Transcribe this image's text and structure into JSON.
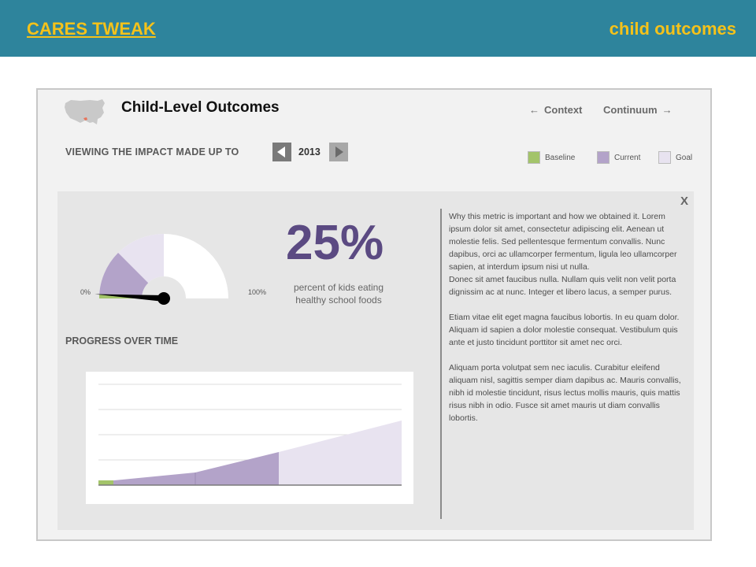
{
  "header": {
    "brand": "CARES TWEAK",
    "section": "child outcomes"
  },
  "page": {
    "title": "Child-Level Outcomes",
    "nav_context": "Context",
    "nav_continuum": "Continuum"
  },
  "viewing": {
    "label": "VIEWING THE IMPACT MADE UP TO",
    "year": "2013"
  },
  "legend": {
    "baseline": "Baseline",
    "current": "Current",
    "goal": "Goal"
  },
  "colors": {
    "banner": "#2e849c",
    "brand_text": "#f5c21a",
    "baseline": "#a3c46a",
    "current": "#b3a3c9",
    "goal": "#e8e3f0",
    "percent_text": "#5b4a82"
  },
  "icons": {
    "map": "us-map-icon",
    "back_arrow": "arrow-left-icon",
    "forward_arrow": "arrow-right-icon",
    "prev_year": "triangle-left-icon",
    "next_year": "triangle-right-icon",
    "close": "close-icon"
  },
  "metric": {
    "value": "25%",
    "caption_line1": "percent of kids eating",
    "caption_line2": "healthy school foods",
    "gauge_min_label": "0%",
    "gauge_max_label": "100%",
    "gauge_baseline_fraction": 0.02,
    "gauge_current_fraction": 0.25,
    "gauge_goal_fraction": 0.5
  },
  "progress": {
    "title": "PROGRESS OVER TIME"
  },
  "close_label": "X",
  "explanation": {
    "paragraph1": "Why this metric is important and how we obtained it. Lorem ipsum dolor sit amet, consectetur adipiscing elit. Aenean ut molestie felis. Sed pellentesque fermentum convallis. Nunc dapibus, orci ac ullamcorper fermentum, ligula leo ullamcorper sapien, at interdum ipsum nisi ut nulla.",
    "paragraph1b": "Donec sit amet faucibus nulla. Nullam quis velit non velit porta dignissim ac at nunc. Integer et libero lacus, a semper purus.",
    "paragraph2": "Etiam vitae elit eget magna faucibus lobortis. In eu quam dolor. Aliquam id sapien a dolor molestie consequat. Vestibulum quis ante et justo tincidunt porttitor sit amet nec orci.",
    "paragraph3": "Aliquam porta volutpat sem nec iaculis. Curabitur eleifend aliquam nisl, sagittis semper diam dapibus ac. Mauris convallis, nibh id molestie tincidunt, risus lectus mollis mauris, quis mattis risus nibh in odio. Fusce sit amet mauris ut diam convallis lobortis."
  }
}
